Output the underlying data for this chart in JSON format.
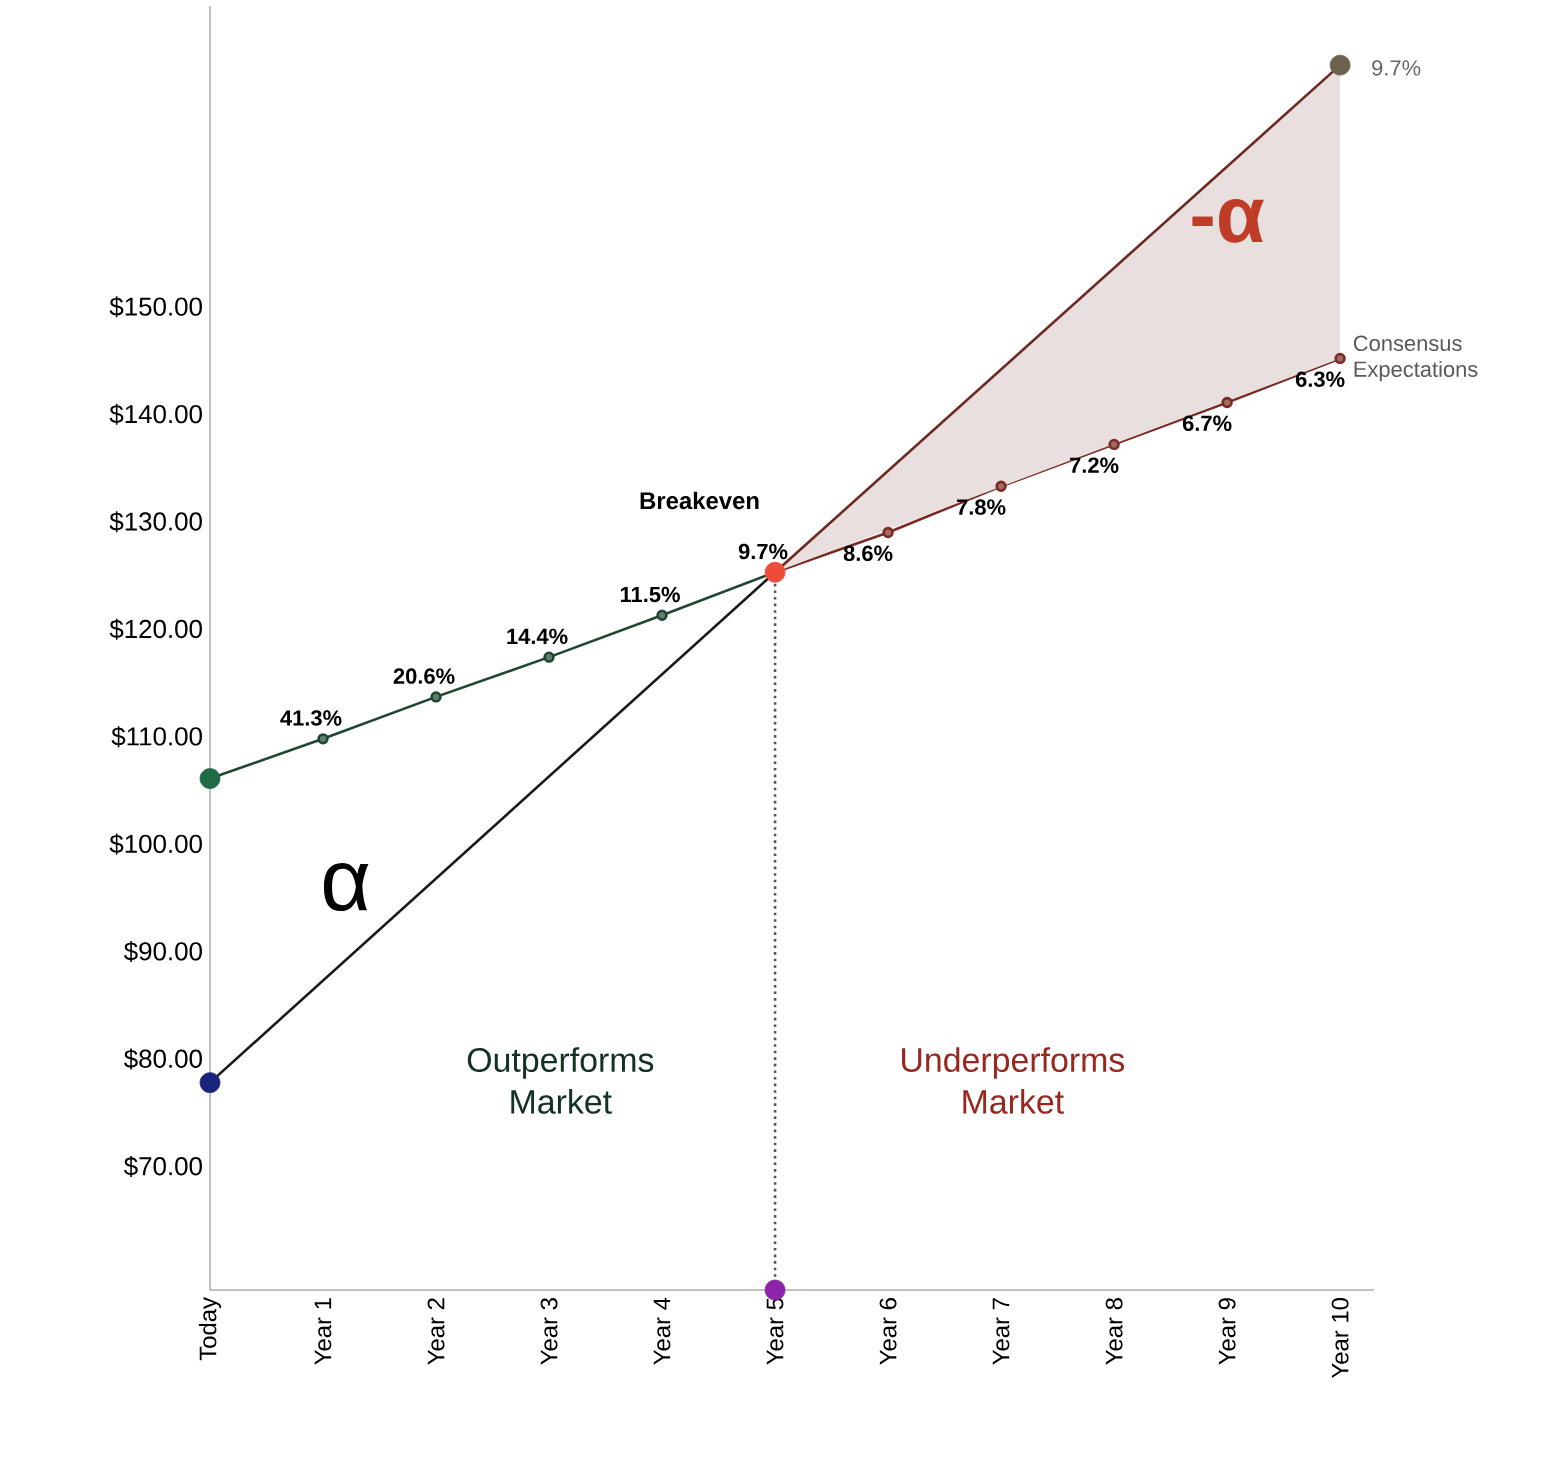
{
  "chart_data": {
    "type": "line",
    "categories": [
      "Today",
      "Year 1",
      "Year 2",
      "Year 3",
      "Year 4",
      "Year 5",
      "Year 6",
      "Year 7",
      "Year 8",
      "Year 9",
      "Year 10"
    ],
    "ylim": [
      58.5,
      178
    ],
    "yticks": [
      {
        "value": 70,
        "label": "$70.00"
      },
      {
        "value": 80,
        "label": "$80.00"
      },
      {
        "value": 90,
        "label": "$90.00"
      },
      {
        "value": 100,
        "label": "$100.00"
      },
      {
        "value": 110,
        "label": "$110.00"
      },
      {
        "value": 120,
        "label": "$120.00"
      },
      {
        "value": 130,
        "label": "$130.00"
      },
      {
        "value": 140,
        "label": "$140.00"
      },
      {
        "value": 150,
        "label": "$150.00"
      }
    ],
    "grid": false,
    "series": [
      {
        "color": "#1e4630",
        "marker": "circle",
        "values": [
          106.1,
          109.8,
          113.7,
          117.4,
          121.3,
          125.3,
          null,
          null,
          null,
          null,
          null
        ]
      },
      {
        "name": "Consensus Expectations",
        "color": "#7a2a22",
        "marker": "circle",
        "values": [
          null,
          null,
          null,
          null,
          null,
          125.3,
          129.0,
          133.3,
          137.2,
          141.1,
          145.2
        ]
      },
      {
        "color": "#1a1a1a",
        "values": [
          77.8,
          null,
          null,
          null,
          null,
          125.3,
          null,
          null,
          null,
          null,
          null
        ]
      },
      {
        "color": "#6b2a22",
        "values": [
          null,
          null,
          null,
          null,
          null,
          125.3,
          null,
          null,
          null,
          null,
          172.5
        ],
        "lower": [
          null,
          null,
          null,
          null,
          null,
          125.3,
          null,
          null,
          null,
          null,
          145.2
        ],
        "upper": [
          null,
          null,
          null,
          null,
          null,
          125.3,
          null,
          null,
          null,
          null,
          172.5
        ]
      },
      {
        "type": "line",
        "line_style": "dotted",
        "color": "#555555",
        "x": [
          "Year 5",
          "Year 5"
        ],
        "values": [
          58.5,
          125.3
        ]
      },
      {
        "type": "scatter",
        "x": [
          "Today",
          "Today",
          "Year 5",
          "Year 5",
          "Year 10"
        ],
        "values": [
          106.1,
          77.8,
          125.3,
          58.5,
          172.5
        ],
        "colors": [
          "#1e6b45",
          "#1a237e",
          "#ef4b3c",
          "#8e24aa",
          "#6d6250"
        ]
      }
    ],
    "annotations": [
      {
        "text": "Breakeven",
        "x": "Year 5",
        "y": 125.3
      },
      {
        "text": "9.7%",
        "x": "Year 10",
        "y": 172.5
      },
      "α",
      "-α",
      "Outperforms Market",
      "Underperforms Market",
      {
        "text": "41.3%",
        "x": "Year 1",
        "y": 109.8
      },
      {
        "text": "20.6%",
        "x": "Year 2",
        "y": 113.7
      },
      {
        "text": "14.4%",
        "x": "Year 3",
        "y": 117.4
      },
      {
        "text": "11.5%",
        "x": "Year 4",
        "y": 121.3
      },
      {
        "text": "9.7%",
        "x": "Year 5",
        "y": 125.3
      },
      {
        "text": "8.6%",
        "x": "Year 6",
        "y": 129.0
      },
      {
        "text": "7.8%",
        "x": "Year 7",
        "y": 133.3
      },
      {
        "text": "7.2%",
        "x": "Year 8",
        "y": 137.2
      },
      {
        "text": "6.7%",
        "x": "Year 9",
        "y": 141.1
      },
      {
        "text": "6.3%",
        "x": "Year 10",
        "y": 145.2
      }
    ]
  }
}
